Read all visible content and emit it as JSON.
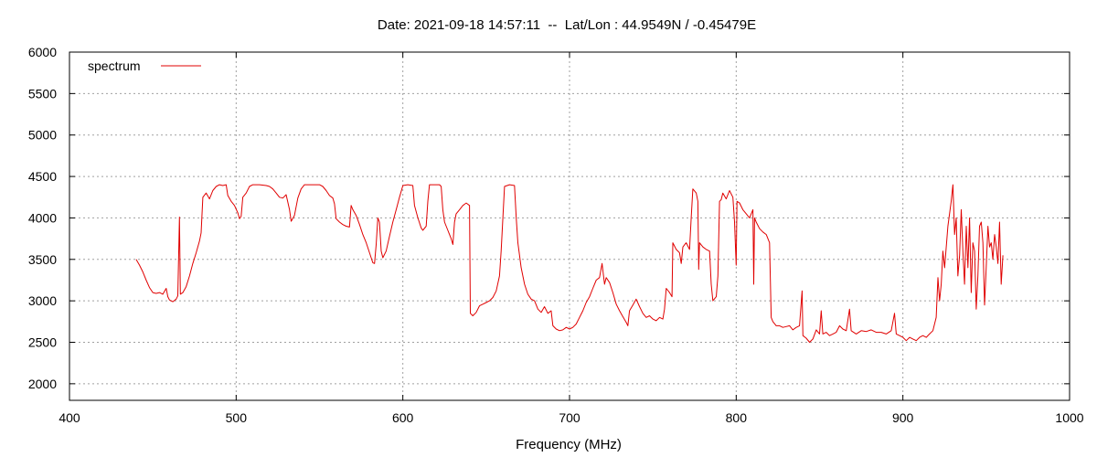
{
  "chart_data": {
    "type": "line",
    "title": "Date: 2021-09-18 14:57:11  --  Lat/Lon : 44.9549N / -0.45479E",
    "xlabel": "Frequency (MHz)",
    "ylabel": "",
    "xlim": [
      400,
      1000
    ],
    "ylim": [
      1800,
      6000
    ],
    "xticks": [
      400,
      500,
      600,
      700,
      800,
      900,
      1000
    ],
    "yticks": [
      2000,
      2500,
      3000,
      3500,
      4000,
      4500,
      5000,
      5500,
      6000
    ],
    "grid": true,
    "legend_position": "top-left",
    "series": [
      {
        "name": "spectrum",
        "color": "#e00000",
        "points": [
          [
            440,
            3500
          ],
          [
            442,
            3430
          ],
          [
            444,
            3350
          ],
          [
            446,
            3250
          ],
          [
            448,
            3160
          ],
          [
            450,
            3100
          ],
          [
            452,
            3090
          ],
          [
            454,
            3100
          ],
          [
            456,
            3080
          ],
          [
            458,
            3150
          ],
          [
            459,
            3050
          ],
          [
            460,
            3010
          ],
          [
            462,
            2990
          ],
          [
            464,
            3020
          ],
          [
            465,
            3060
          ],
          [
            466,
            4010
          ],
          [
            466.5,
            3080
          ],
          [
            468,
            3100
          ],
          [
            470,
            3170
          ],
          [
            472,
            3300
          ],
          [
            474,
            3450
          ],
          [
            476,
            3580
          ],
          [
            478,
            3720
          ],
          [
            479,
            3820
          ],
          [
            480,
            4250
          ],
          [
            482,
            4300
          ],
          [
            484,
            4230
          ],
          [
            486,
            4330
          ],
          [
            488,
            4380
          ],
          [
            490,
            4400
          ],
          [
            492,
            4390
          ],
          [
            494,
            4400
          ],
          [
            495,
            4270
          ],
          [
            497,
            4200
          ],
          [
            499,
            4150
          ],
          [
            501,
            4060
          ],
          [
            502,
            3990
          ],
          [
            503,
            4020
          ],
          [
            504,
            4250
          ],
          [
            506,
            4300
          ],
          [
            508,
            4380
          ],
          [
            510,
            4400
          ],
          [
            514,
            4400
          ],
          [
            518,
            4390
          ],
          [
            520,
            4380
          ],
          [
            522,
            4350
          ],
          [
            524,
            4300
          ],
          [
            526,
            4250
          ],
          [
            528,
            4240
          ],
          [
            530,
            4280
          ],
          [
            532,
            4100
          ],
          [
            533,
            3960
          ],
          [
            535,
            4030
          ],
          [
            537,
            4240
          ],
          [
            539,
            4350
          ],
          [
            541,
            4400
          ],
          [
            545,
            4400
          ],
          [
            550,
            4400
          ],
          [
            552,
            4380
          ],
          [
            554,
            4330
          ],
          [
            556,
            4270
          ],
          [
            558,
            4240
          ],
          [
            559,
            4170
          ],
          [
            560,
            3990
          ],
          [
            562,
            3950
          ],
          [
            564,
            3920
          ],
          [
            566,
            3900
          ],
          [
            568,
            3890
          ],
          [
            569,
            4150
          ],
          [
            570,
            4100
          ],
          [
            572,
            4030
          ],
          [
            574,
            3920
          ],
          [
            576,
            3800
          ],
          [
            578,
            3700
          ],
          [
            580,
            3580
          ],
          [
            582,
            3460
          ],
          [
            583,
            3450
          ],
          [
            584,
            3680
          ],
          [
            585,
            4000
          ],
          [
            586,
            3950
          ],
          [
            587,
            3600
          ],
          [
            588,
            3520
          ],
          [
            590,
            3600
          ],
          [
            592,
            3780
          ],
          [
            594,
            3950
          ],
          [
            596,
            4100
          ],
          [
            598,
            4250
          ],
          [
            600,
            4390
          ],
          [
            603,
            4400
          ],
          [
            606,
            4390
          ],
          [
            607,
            4150
          ],
          [
            609,
            4000
          ],
          [
            611,
            3880
          ],
          [
            612,
            3850
          ],
          [
            614,
            3900
          ],
          [
            615,
            4200
          ],
          [
            616,
            4400
          ],
          [
            622,
            4400
          ],
          [
            623,
            4380
          ],
          [
            624,
            4100
          ],
          [
            625,
            3950
          ],
          [
            627,
            3850
          ],
          [
            629,
            3750
          ],
          [
            630,
            3680
          ],
          [
            631,
            3950
          ],
          [
            632,
            4050
          ],
          [
            634,
            4100
          ],
          [
            636,
            4150
          ],
          [
            638,
            4180
          ],
          [
            640,
            4150
          ],
          [
            640.5,
            2850
          ],
          [
            642,
            2820
          ],
          [
            644,
            2860
          ],
          [
            646,
            2940
          ],
          [
            648,
            2960
          ],
          [
            650,
            2980
          ],
          [
            652,
            3000
          ],
          [
            654,
            3040
          ],
          [
            656,
            3120
          ],
          [
            658,
            3300
          ],
          [
            659,
            3600
          ],
          [
            660,
            4000
          ],
          [
            661,
            4380
          ],
          [
            664,
            4400
          ],
          [
            667,
            4390
          ],
          [
            668,
            4000
          ],
          [
            669,
            3700
          ],
          [
            671,
            3400
          ],
          [
            673,
            3200
          ],
          [
            675,
            3080
          ],
          [
            677,
            3020
          ],
          [
            679,
            3000
          ],
          [
            681,
            2900
          ],
          [
            683,
            2860
          ],
          [
            685,
            2930
          ],
          [
            687,
            2850
          ],
          [
            689,
            2880
          ],
          [
            690,
            2700
          ],
          [
            692,
            2660
          ],
          [
            694,
            2640
          ],
          [
            696,
            2650
          ],
          [
            698,
            2680
          ],
          [
            700,
            2660
          ],
          [
            702,
            2680
          ],
          [
            704,
            2720
          ],
          [
            706,
            2800
          ],
          [
            708,
            2880
          ],
          [
            710,
            2980
          ],
          [
            712,
            3050
          ],
          [
            714,
            3150
          ],
          [
            716,
            3250
          ],
          [
            718,
            3280
          ],
          [
            719.5,
            3450
          ],
          [
            721,
            3200
          ],
          [
            722,
            3280
          ],
          [
            724,
            3220
          ],
          [
            726,
            3100
          ],
          [
            728,
            2960
          ],
          [
            730,
            2880
          ],
          [
            732,
            2810
          ],
          [
            734,
            2740
          ],
          [
            735,
            2700
          ],
          [
            736,
            2880
          ],
          [
            738,
            2950
          ],
          [
            740,
            3020
          ],
          [
            742,
            2930
          ],
          [
            744,
            2850
          ],
          [
            746,
            2800
          ],
          [
            748,
            2820
          ],
          [
            750,
            2780
          ],
          [
            752,
            2760
          ],
          [
            754,
            2800
          ],
          [
            756,
            2780
          ],
          [
            757,
            2900
          ],
          [
            758,
            3150
          ],
          [
            760,
            3100
          ],
          [
            761.5,
            3050
          ],
          [
            762,
            3700
          ],
          [
            764,
            3620
          ],
          [
            766,
            3580
          ],
          [
            767,
            3450
          ],
          [
            768,
            3650
          ],
          [
            770,
            3700
          ],
          [
            772,
            3620
          ],
          [
            773,
            4000
          ],
          [
            774,
            4350
          ],
          [
            776,
            4300
          ],
          [
            777,
            4200
          ],
          [
            777.5,
            3380
          ],
          [
            778,
            3700
          ],
          [
            780,
            3650
          ],
          [
            782,
            3620
          ],
          [
            784,
            3600
          ],
          [
            785,
            3200
          ],
          [
            786,
            3000
          ],
          [
            788,
            3050
          ],
          [
            789,
            3300
          ],
          [
            790,
            4200
          ],
          [
            791,
            4220
          ],
          [
            792,
            4300
          ],
          [
            794,
            4230
          ],
          [
            796,
            4330
          ],
          [
            798,
            4250
          ],
          [
            799,
            3950
          ],
          [
            800,
            3430
          ],
          [
            800.5,
            4200
          ],
          [
            802,
            4180
          ],
          [
            804,
            4100
          ],
          [
            806,
            4050
          ],
          [
            808,
            4000
          ],
          [
            810,
            4100
          ],
          [
            810.5,
            3200
          ],
          [
            811,
            4000
          ],
          [
            812,
            3950
          ],
          [
            814,
            3870
          ],
          [
            816,
            3830
          ],
          [
            818,
            3800
          ],
          [
            820,
            3700
          ],
          [
            821,
            2800
          ],
          [
            822,
            2750
          ],
          [
            824,
            2700
          ],
          [
            826,
            2700
          ],
          [
            828,
            2680
          ],
          [
            830,
            2690
          ],
          [
            832,
            2700
          ],
          [
            834,
            2650
          ],
          [
            836,
            2680
          ],
          [
            838,
            2700
          ],
          [
            839.5,
            3120
          ],
          [
            840,
            2580
          ],
          [
            842,
            2550
          ],
          [
            844,
            2500
          ],
          [
            846,
            2540
          ],
          [
            848,
            2650
          ],
          [
            850,
            2600
          ],
          [
            851,
            2880
          ],
          [
            852,
            2600
          ],
          [
            854,
            2620
          ],
          [
            856,
            2580
          ],
          [
            858,
            2600
          ],
          [
            860,
            2620
          ],
          [
            862,
            2700
          ],
          [
            864,
            2660
          ],
          [
            866,
            2640
          ],
          [
            868,
            2900
          ],
          [
            869,
            2640
          ],
          [
            872,
            2600
          ],
          [
            875,
            2640
          ],
          [
            878,
            2630
          ],
          [
            881,
            2650
          ],
          [
            884,
            2620
          ],
          [
            887,
            2620
          ],
          [
            890,
            2600
          ],
          [
            893,
            2640
          ],
          [
            895,
            2850
          ],
          [
            896,
            2600
          ],
          [
            898,
            2580
          ],
          [
            900,
            2560
          ],
          [
            902,
            2520
          ],
          [
            904,
            2560
          ],
          [
            906,
            2540
          ],
          [
            908,
            2520
          ],
          [
            910,
            2560
          ],
          [
            912,
            2580
          ],
          [
            914,
            2560
          ],
          [
            916,
            2600
          ],
          [
            918,
            2640
          ],
          [
            920,
            2800
          ],
          [
            921,
            3280
          ],
          [
            922,
            3000
          ],
          [
            923,
            3200
          ],
          [
            924,
            3600
          ],
          [
            925,
            3400
          ],
          [
            927,
            3900
          ],
          [
            929,
            4200
          ],
          [
            930,
            4400
          ],
          [
            931,
            3800
          ],
          [
            932,
            4000
          ],
          [
            933,
            3300
          ],
          [
            934,
            3550
          ],
          [
            935,
            4100
          ],
          [
            936,
            3600
          ],
          [
            937,
            3200
          ],
          [
            938,
            3900
          ],
          [
            939,
            3400
          ],
          [
            940,
            4000
          ],
          [
            941,
            3100
          ],
          [
            942,
            3700
          ],
          [
            943,
            3600
          ],
          [
            944,
            2900
          ],
          [
            945,
            3300
          ],
          [
            946,
            3900
          ],
          [
            947,
            3950
          ],
          [
            948,
            3700
          ],
          [
            949,
            2950
          ],
          [
            950,
            3400
          ],
          [
            951,
            3900
          ],
          [
            952,
            3650
          ],
          [
            953,
            3700
          ],
          [
            954,
            3500
          ],
          [
            955,
            3800
          ],
          [
            956,
            3650
          ],
          [
            957,
            3450
          ],
          [
            958,
            3950
          ],
          [
            959,
            3200
          ],
          [
            960,
            3550
          ]
        ]
      }
    ]
  }
}
